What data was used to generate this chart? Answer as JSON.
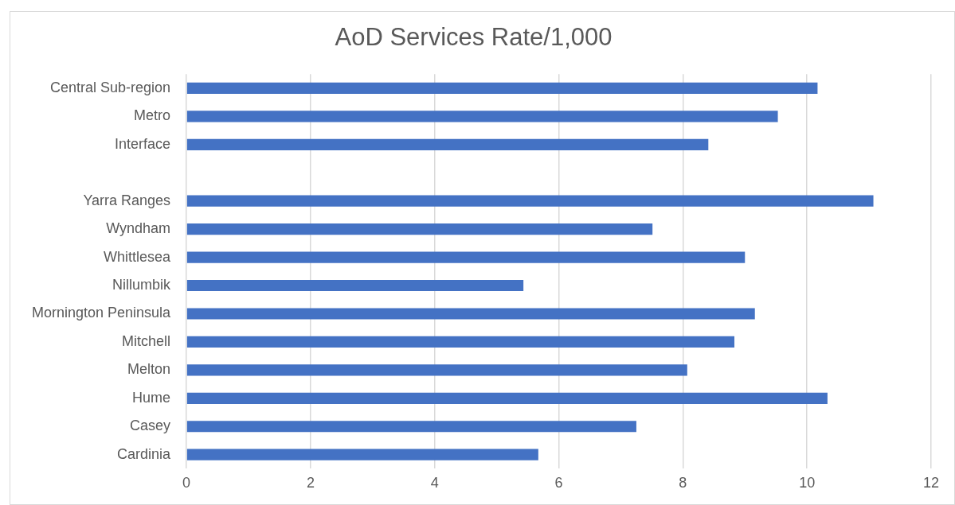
{
  "chart_data": {
    "type": "bar",
    "orientation": "horizontal",
    "title": "AoD Services Rate/1,000",
    "categories": [
      "Central Sub-region",
      "Metro",
      "Interface",
      null,
      "Yarra Ranges",
      "Wyndham",
      "Whittlesea",
      "Nillumbik",
      "Mornington Peninsula",
      "Mitchell",
      "Melton",
      "Hume",
      "Casey",
      "Cardinia"
    ],
    "values": [
      10.17,
      9.53,
      8.41,
      null,
      11.07,
      7.51,
      9.0,
      5.43,
      9.16,
      8.83,
      8.07,
      10.33,
      7.25,
      5.67
    ],
    "color": "#4472c4",
    "xlim": [
      0,
      12
    ],
    "xticks": [
      0,
      2,
      4,
      6,
      8,
      10,
      12
    ],
    "grid": "x",
    "legend": false
  }
}
